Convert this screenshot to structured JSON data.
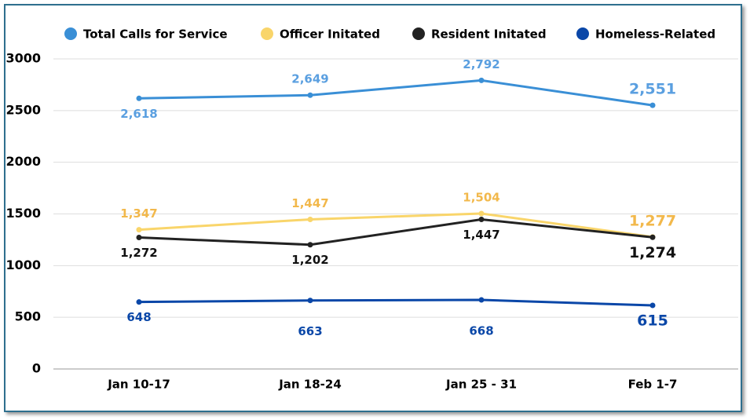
{
  "chart_data": {
    "type": "line",
    "categories": [
      "Jan 10-17",
      "Jan 18-24",
      "Jan 25 - 31",
      "Feb 1-7"
    ],
    "series": [
      {
        "name": "Total Calls for Service",
        "color": "#3a8fd6",
        "values": [
          2618,
          2649,
          2792,
          2551
        ],
        "value_labels": [
          "2,618",
          "2,649",
          "2,792",
          "2,551"
        ]
      },
      {
        "name": "Officer Initated",
        "color": "#f9d56a",
        "values": [
          1347,
          1447,
          1504,
          1277
        ],
        "value_labels": [
          "1,347",
          "1,447",
          "1,504",
          "1,277"
        ]
      },
      {
        "name": "Resident Initated",
        "color": "#222222",
        "values": [
          1272,
          1202,
          1447,
          1274
        ],
        "value_labels": [
          "1,272",
          "1,202",
          "1,447",
          "1,274"
        ]
      },
      {
        "name": "Homeless-Related",
        "color": "#0a47a8",
        "values": [
          648,
          663,
          668,
          615
        ],
        "value_labels": [
          "648",
          "663",
          "668",
          "615"
        ]
      }
    ],
    "ylim": [
      0,
      3000
    ],
    "yticks": [
      0,
      500,
      1000,
      1500,
      2000,
      2500,
      3000
    ],
    "grid": true
  }
}
